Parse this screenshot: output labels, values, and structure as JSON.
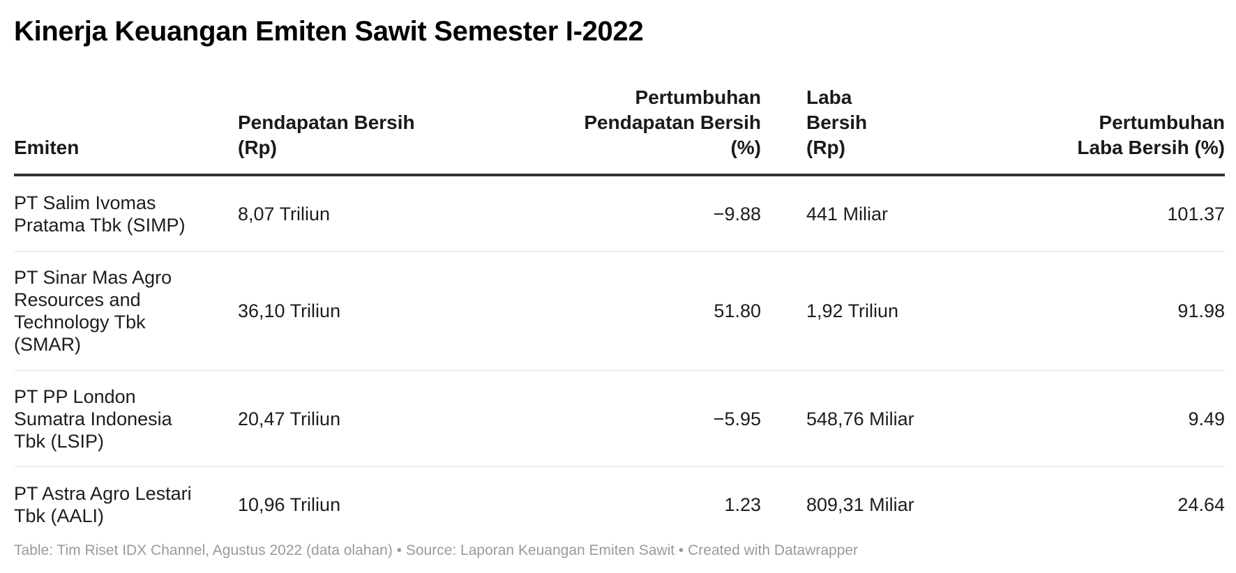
{
  "title": "Kinerja Keuangan Emiten Sawit Semester I-2022",
  "chart_data": {
    "type": "table",
    "columns": [
      {
        "label": "Emiten",
        "align": "left"
      },
      {
        "label": "Pendapatan Bersih (Rp)",
        "align": "left"
      },
      {
        "label": "Pertumbuhan Pendapatan Bersih (%)",
        "align": "right"
      },
      {
        "label": "Laba Bersih (Rp)",
        "align": "left"
      },
      {
        "label": "Pertumbuhan Laba Bersih (%)",
        "align": "right"
      }
    ],
    "rows": [
      [
        "PT Salim Ivomas Pratama Tbk (SIMP)",
        "8,07 Triliun",
        "−9.88",
        "441 Miliar",
        "101.37"
      ],
      [
        "PT Sinar Mas Agro Resources and Technology Tbk (SMAR)",
        "36,10 Triliun",
        "51.80",
        "1,92 Triliun",
        "91.98"
      ],
      [
        "PT PP London Sumatra Indonesia Tbk (LSIP)",
        "20,47 Triliun",
        "−5.95",
        "548,76 Miliar",
        "9.49"
      ],
      [
        "PT Astra Agro Lestari Tbk (AALI)",
        "10,96 Triliun",
        "1.23",
        "809,31 Miliar",
        "24.64"
      ]
    ]
  },
  "footer": "Table: Tim Riset IDX Channel, Agustus 2022 (data olahan) • Source: Laporan Keuangan Emiten Sawit • Created with Datawrapper",
  "colors": {
    "header_rule": "#333333",
    "row_divider": "#e3e3e3",
    "footer_text": "#9a9a9a"
  }
}
